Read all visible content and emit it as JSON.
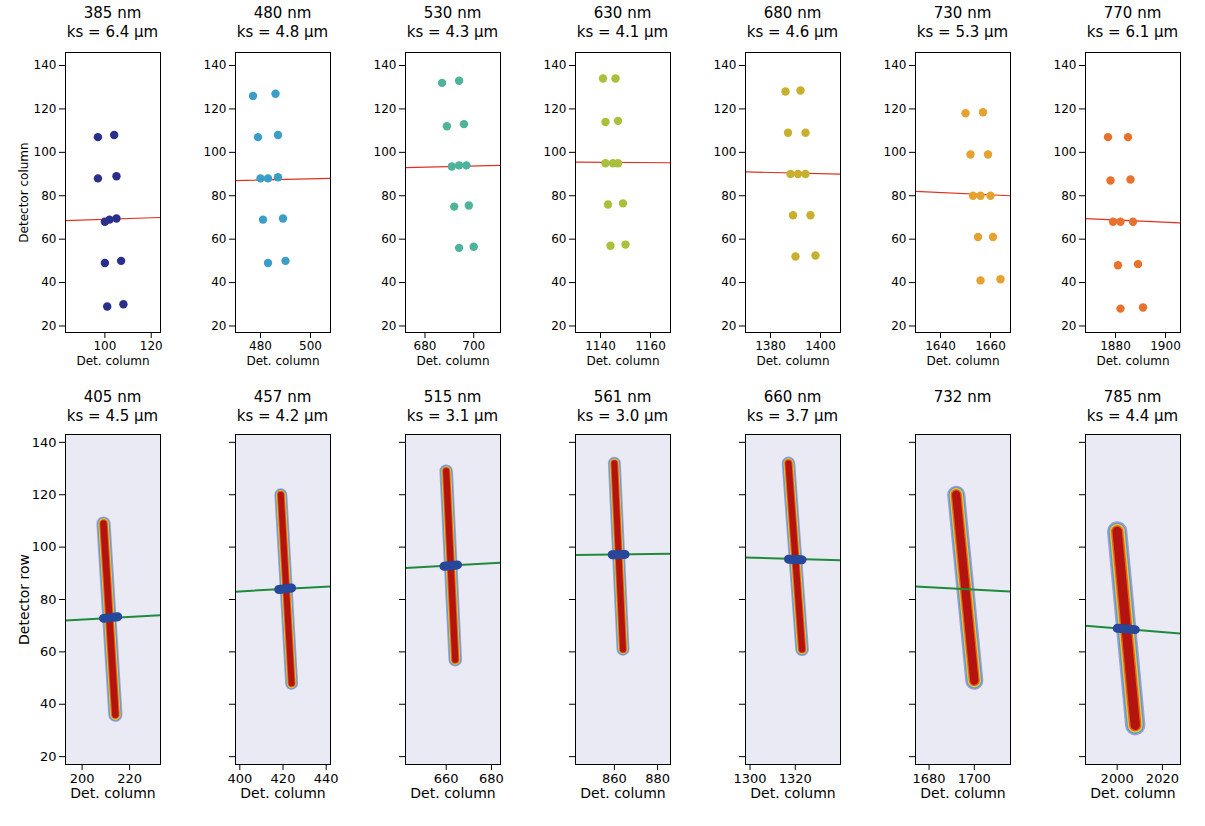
{
  "chart_data": [
    {
      "type": "scatter",
      "title": "385 nm",
      "subtitle": "ks = 6.4 μm",
      "xlabel": "Det. column",
      "ylabel": "Detector column",
      "xlim": [
        83,
        124
      ],
      "xticks": [
        100,
        120
      ],
      "ylim": [
        17,
        146
      ],
      "yticks": [
        20,
        40,
        60,
        80,
        100,
        120,
        140
      ],
      "points": {
        "x": [
          97,
          104,
          97,
          105,
          100,
          102,
          105,
          100,
          107,
          101,
          108
        ],
        "y": [
          107,
          108,
          88,
          89,
          68,
          69,
          69.5,
          49,
          50,
          29,
          30
        ],
        "color": "#2b2f8c"
      },
      "fit_line": {
        "x": [
          83,
          124
        ],
        "y": [
          68.5,
          70
        ],
        "color": "#e0301e"
      }
    },
    {
      "type": "scatter",
      "title": "480 nm",
      "subtitle": "ks = 4.8 μm",
      "xlabel": "Det. column",
      "xlim": [
        470,
        508
      ],
      "xticks": [
        480,
        500
      ],
      "ylim": [
        17,
        146
      ],
      "yticks": [
        20,
        40,
        60,
        80,
        100,
        120,
        140
      ],
      "points": {
        "x": [
          477,
          486,
          479,
          487,
          480,
          483,
          487,
          481,
          489,
          483,
          490
        ],
        "y": [
          126,
          127,
          107,
          108,
          88,
          88,
          88.5,
          69,
          69.5,
          49,
          50
        ],
        "color": "#3a9ec9"
      },
      "fit_line": {
        "x": [
          470,
          508
        ],
        "y": [
          87,
          88
        ],
        "color": "#e0301e"
      }
    },
    {
      "type": "scatter",
      "title": "530 nm",
      "subtitle": "ks = 4.3 μm",
      "xlabel": "Det. column",
      "xlim": [
        672,
        711
      ],
      "xticks": [
        680,
        700
      ],
      "ylim": [
        17,
        146
      ],
      "yticks": [
        20,
        40,
        60,
        80,
        100,
        120,
        140
      ],
      "points": {
        "x": [
          687,
          694,
          689,
          696,
          691,
          694,
          697,
          692,
          698,
          694,
          700
        ],
        "y": [
          132,
          133,
          112,
          113,
          93.5,
          94,
          94,
          75,
          75.5,
          56,
          56.5
        ],
        "color": "#4db39a"
      },
      "fit_line": {
        "x": [
          672,
          711
        ],
        "y": [
          93,
          94
        ],
        "color": "#e0301e"
      }
    },
    {
      "type": "scatter",
      "title": "630 nm",
      "subtitle": "ks = 4.1 μm",
      "xlabel": "Det. column",
      "xlim": [
        1130,
        1168
      ],
      "xticks": [
        1140,
        1160
      ],
      "ylim": [
        17,
        146
      ],
      "yticks": [
        20,
        40,
        60,
        80,
        100,
        120,
        140
      ],
      "points": {
        "x": [
          1141,
          1146,
          1142,
          1147,
          1142,
          1145,
          1147,
          1143,
          1149,
          1144,
          1150
        ],
        "y": [
          134,
          134,
          114,
          114.5,
          95,
          95,
          95,
          76,
          76.5,
          57,
          57.5
        ],
        "color": "#a8c03a"
      },
      "fit_line": {
        "x": [
          1130,
          1168
        ],
        "y": [
          95.5,
          95.2
        ],
        "color": "#e0301e"
      }
    },
    {
      "type": "scatter",
      "title": "680 nm",
      "subtitle": "ks = 4.6 μm",
      "xlabel": "Det. column",
      "xlim": [
        1370,
        1408
      ],
      "xticks": [
        1380,
        1400
      ],
      "ylim": [
        17,
        146
      ],
      "yticks": [
        20,
        40,
        60,
        80,
        100,
        120,
        140
      ],
      "points": {
        "x": [
          1386,
          1392,
          1387,
          1394,
          1388,
          1391,
          1394,
          1389,
          1396,
          1390,
          1398
        ],
        "y": [
          128,
          128.5,
          109,
          109,
          90,
          90,
          90,
          71,
          71,
          52,
          52.5
        ],
        "color": "#c8b02e"
      },
      "fit_line": {
        "x": [
          1370,
          1408
        ],
        "y": [
          91,
          90
        ],
        "color": "#e0301e"
      }
    },
    {
      "type": "scatter",
      "title": "730 nm",
      "subtitle": "ks = 5.3 μm",
      "xlabel": "Det. column",
      "xlim": [
        1630,
        1668
      ],
      "xticks": [
        1640,
        1660
      ],
      "ylim": [
        17,
        146
      ],
      "yticks": [
        20,
        40,
        60,
        80,
        100,
        120,
        140
      ],
      "points": {
        "x": [
          1650,
          1657,
          1652,
          1659,
          1653,
          1656,
          1660,
          1655,
          1661,
          1656,
          1664
        ],
        "y": [
          118,
          118.5,
          99,
          99,
          80,
          80,
          80,
          61,
          61,
          41,
          41.5
        ],
        "color": "#e5a22e"
      },
      "fit_line": {
        "x": [
          1630,
          1668
        ],
        "y": [
          82,
          80
        ],
        "color": "#e0301e"
      }
    },
    {
      "type": "scatter",
      "title": "770 nm",
      "subtitle": "ks = 6.1 μm",
      "xlabel": "Det. column",
      "xlim": [
        1868,
        1906
      ],
      "xticks": [
        1880,
        1900
      ],
      "ylim": [
        17,
        146
      ],
      "yticks": [
        20,
        40,
        60,
        80,
        100,
        120,
        140
      ],
      "points": {
        "x": [
          1877,
          1885,
          1878,
          1886,
          1879,
          1882,
          1887,
          1881,
          1889,
          1882,
          1891
        ],
        "y": [
          107,
          107,
          87,
          87.5,
          68,
          68,
          68,
          48,
          48.5,
          28,
          28.5
        ],
        "color": "#e8712e"
      },
      "fit_line": {
        "x": [
          1868,
          1906
        ],
        "y": [
          69.5,
          67.5
        ],
        "color": "#e0301e"
      }
    },
    {
      "type": "image",
      "title": "405 nm",
      "subtitle": "ks = 4.5 μm",
      "xlabel": "Det. column",
      "ylabel": "Detector row",
      "xlim": [
        193,
        233
      ],
      "xticks": [
        200,
        220
      ],
      "ylim": [
        17,
        143
      ],
      "yticks": [
        20,
        40,
        60,
        80,
        100,
        120,
        140
      ],
      "stripe": {
        "x": [
          209,
          214
        ],
        "y": [
          109,
          36
        ],
        "width": 6
      },
      "fit_line": {
        "x": [
          193,
          233
        ],
        "y": [
          72,
          74
        ],
        "color": "#1e8a3c"
      },
      "blob": {
        "x": [
          209,
          215
        ],
        "y": [
          72.8,
          73.4
        ],
        "color": "#26479a"
      }
    },
    {
      "type": "image",
      "title": "457 nm",
      "subtitle": "ks = 4.2 μm",
      "xlabel": "Det. column",
      "tick_labels": "x",
      "xlim": [
        398,
        442
      ],
      "xticks": [
        400,
        420,
        440
      ],
      "ylim": [
        17,
        143
      ],
      "yticks": [
        20,
        40,
        60,
        80,
        100,
        120,
        140
      ],
      "stripe": {
        "x": [
          419,
          424
        ],
        "y": [
          120,
          48
        ],
        "width": 6
      },
      "fit_line": {
        "x": [
          398,
          442
        ],
        "y": [
          83,
          85
        ],
        "color": "#1e8a3c"
      },
      "blob": {
        "x": [
          418,
          424
        ],
        "y": [
          83.8,
          84.4
        ],
        "color": "#26479a"
      }
    },
    {
      "type": "image",
      "title": "515 nm",
      "subtitle": "ks = 3.1 μm",
      "xlabel": "Det. column",
      "tick_labels": "x",
      "xlim": [
        642,
        684
      ],
      "xticks": [
        660,
        680
      ],
      "ylim": [
        17,
        143
      ],
      "yticks": [
        20,
        40,
        60,
        80,
        100,
        120,
        140
      ],
      "stripe": {
        "x": [
          660,
          664
        ],
        "y": [
          129,
          57
        ],
        "width": 6
      },
      "fit_line": {
        "x": [
          642,
          684
        ],
        "y": [
          92,
          94
        ],
        "color": "#1e8a3c"
      },
      "blob": {
        "x": [
          659,
          665
        ],
        "y": [
          92.7,
          93.2
        ],
        "color": "#26479a"
      }
    },
    {
      "type": "image",
      "title": "561 nm",
      "subtitle": "ks = 3.0 μm",
      "xlabel": "Det. column",
      "tick_labels": "x",
      "xlim": [
        842,
        886
      ],
      "xticks": [
        860,
        880
      ],
      "ylim": [
        17,
        143
      ],
      "yticks": [
        20,
        40,
        60,
        80,
        100,
        120,
        140
      ],
      "stripe": {
        "x": [
          860,
          864
        ],
        "y": [
          132,
          61
        ],
        "width": 6
      },
      "fit_line": {
        "x": [
          842,
          886
        ],
        "y": [
          97,
          97.5
        ],
        "color": "#1e8a3c"
      },
      "blob": {
        "x": [
          859,
          865
        ],
        "y": [
          97.1,
          97.2
        ],
        "color": "#26479a"
      }
    },
    {
      "type": "image",
      "title": "660 nm",
      "subtitle": "ks = 3.7 μm",
      "xlabel": "Det. column",
      "tick_labels": "x",
      "xlim": [
        1298,
        1340
      ],
      "xticks": [
        1300,
        1320
      ],
      "ylim": [
        17,
        143
      ],
      "yticks": [
        20,
        40,
        60,
        80,
        100,
        120,
        140
      ],
      "stripe": {
        "x": [
          1317,
          1323
        ],
        "y": [
          132,
          61
        ],
        "width": 6
      },
      "fit_line": {
        "x": [
          1298,
          1340
        ],
        "y": [
          96,
          95
        ],
        "color": "#1e8a3c"
      },
      "blob": {
        "x": [
          1317,
          1323
        ],
        "y": [
          95.4,
          95.2
        ],
        "color": "#26479a"
      }
    },
    {
      "type": "image",
      "title": "732 nm",
      "xlabel": "Det. column",
      "tick_labels": "x",
      "xlim": [
        1674,
        1716
      ],
      "xticks": [
        1680,
        1700
      ],
      "ylim": [
        17,
        143
      ],
      "yticks": [
        20,
        40,
        60,
        80,
        100,
        120,
        140
      ],
      "stripe": {
        "x": [
          1692,
          1700
        ],
        "y": [
          120,
          49
        ],
        "width": 8
      },
      "fit_line": {
        "x": [
          1674,
          1716
        ],
        "y": [
          85,
          83
        ],
        "color": "#1e8a3c"
      }
    },
    {
      "type": "image",
      "title": "785 nm",
      "subtitle": "ks = 4.4 μm",
      "xlabel": "Det. column",
      "tick_labels": "x",
      "xlim": [
        1986,
        2028
      ],
      "xticks": [
        2000,
        2020
      ],
      "ylim": [
        17,
        143
      ],
      "yticks": [
        20,
        40,
        60,
        80,
        100,
        120,
        140
      ],
      "stripe": {
        "x": [
          2000,
          2008
        ],
        "y": [
          106,
          32
        ],
        "width": 9
      },
      "fit_line": {
        "x": [
          1986,
          2028
        ],
        "y": [
          70,
          67
        ],
        "color": "#1e8a3c"
      },
      "blob": {
        "x": [
          2000,
          2008
        ],
        "y": [
          69,
          68.5
        ],
        "color": "#26479a"
      }
    }
  ]
}
